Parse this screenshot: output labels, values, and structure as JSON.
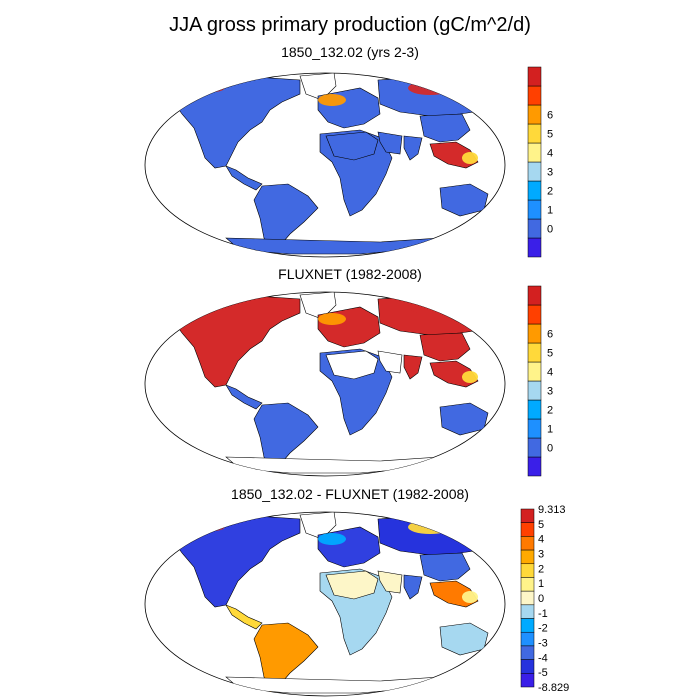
{
  "figure": {
    "title": "JJA gross primary production (gC/m^2/d)"
  },
  "panels": [
    {
      "title": "1850_132.02 (yrs 2-3)",
      "colorbar": {
        "labels": [
          "0",
          "1",
          "2",
          "3",
          "4",
          "5",
          "6"
        ],
        "colors": [
          "#3a1fe8",
          "#4169e1",
          "#1e90ff",
          "#00aaff",
          "#a6d8f0",
          "#fff38a",
          "#ffd93a",
          "#ff9a00",
          "#ff4000",
          "#d32020"
        ]
      },
      "regions": {
        "north_america": "#4169e1",
        "greenland": "#ffffff",
        "central_america": "#3f6ae0",
        "south_america": "#4169e1",
        "europe": "#4169e1",
        "siberia": "#4169e1",
        "africa": "#4169e1",
        "sahara": "#4169e1",
        "arabia": "#4169e1",
        "india": "#4169e1",
        "east_asia": "#4169e1",
        "southeast_asia": "#d42a2a",
        "australia": "#4169e1",
        "antarctica": "#4169e1",
        "hotspots": [
          "#d42a2a",
          "#d42a2a",
          "#ff9a00",
          "#ffd93a"
        ]
      }
    },
    {
      "title": "FLUXNET (1982-2008)",
      "colorbar": {
        "labels": [
          "0",
          "1",
          "2",
          "3",
          "4",
          "5",
          "6"
        ],
        "colors": [
          "#3a1fe8",
          "#4169e1",
          "#1e90ff",
          "#00aaff",
          "#a6d8f0",
          "#fff38a",
          "#ffd93a",
          "#ff9a00",
          "#ff4000",
          "#d32020"
        ]
      },
      "regions": {
        "north_america": "#d42a2a",
        "greenland": "#ffffff",
        "central_america": "#4169e1",
        "south_america": "#4169e1",
        "europe": "#d42a2a",
        "siberia": "#d42a2a",
        "africa": "#4169e1",
        "sahara": "#ffffff",
        "arabia": "#ffffff",
        "india": "#d42a2a",
        "east_asia": "#d42a2a",
        "southeast_asia": "#d42a2a",
        "australia": "#4169e1",
        "antarctica": "#ffffff",
        "hotspots": [
          "#d42a2a",
          "#d42a2a",
          "#ff9a00",
          "#ffd93a"
        ]
      }
    },
    {
      "title": "1850_132.02 - FLUXNET (1982-2008)",
      "colorbar": {
        "labels": [
          "9.313",
          "5",
          "4",
          "3",
          "2",
          "1",
          "0",
          "-1",
          "-2",
          "-3",
          "-4",
          "-5",
          "-8.829"
        ],
        "colors": [
          "#d32020",
          "#ff4000",
          "#ff7a00",
          "#ffaa00",
          "#ffd93a",
          "#fff38a",
          "#fdf6c8",
          "#a6d8f0",
          "#00aaff",
          "#1e90ff",
          "#4169e1",
          "#2633dd",
          "#3a1fe8"
        ]
      },
      "regions": {
        "north_america": "#3040e0",
        "greenland": "#ffffff",
        "central_america": "#ffd93a",
        "south_america": "#ff9a00",
        "europe": "#3040e0",
        "siberia": "#2633dd",
        "africa": "#a6d8f0",
        "sahara": "#fdf6c8",
        "arabia": "#fdf6c8",
        "india": "#4169e1",
        "east_asia": "#4169e1",
        "southeast_asia": "#ff7a00",
        "australia": "#a6d8f0",
        "antarctica": "#ffffff",
        "hotspots": [
          "#d42a2a",
          "#ffd93a",
          "#00aaff",
          "#fff38a"
        ]
      }
    }
  ]
}
